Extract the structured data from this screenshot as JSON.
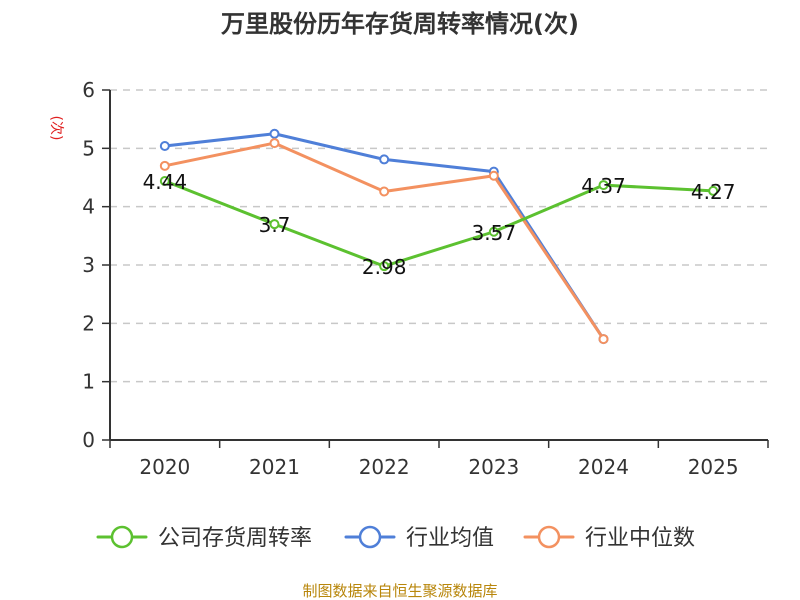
{
  "chart_data": {
    "type": "line",
    "title": "万里股份历年存货周转率情况(次)",
    "ylabel": "(次)",
    "xlabel": "",
    "categories": [
      "2020",
      "2021",
      "2022",
      "2023",
      "2024",
      "2025"
    ],
    "ylim": [
      0,
      6
    ],
    "yticks": [
      "0",
      "1",
      "2",
      "3",
      "4",
      "5",
      "6"
    ],
    "grid": true,
    "legend_position": "bottom",
    "series": [
      {
        "name": "公司存货周转率",
        "color": "#5cc130",
        "values": [
          4.44,
          3.7,
          2.98,
          3.57,
          4.37,
          4.27
        ],
        "labels": [
          "4.44",
          "3.7",
          "2.98",
          "3.57",
          "4.37",
          "4.27"
        ]
      },
      {
        "name": "行业均值",
        "color": "#4f7fd8",
        "values": [
          5.04,
          5.25,
          4.81,
          4.6,
          1.73,
          null
        ]
      },
      {
        "name": "行业中位数",
        "color": "#f39160",
        "values": [
          4.7,
          5.09,
          4.26,
          4.53,
          1.73,
          null
        ]
      }
    ],
    "footer": "制图数据来自恒生聚源数据库"
  }
}
